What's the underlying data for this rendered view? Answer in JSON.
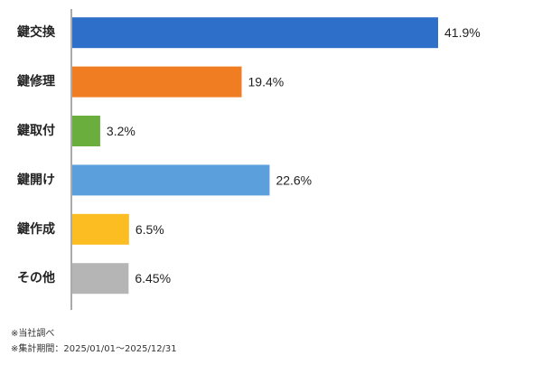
{
  "chart_data": {
    "type": "bar",
    "orientation": "horizontal",
    "categories": [
      "鍵交換",
      "鍵修理",
      "鍵取付",
      "鍵開け",
      "鍵作成",
      "その他"
    ],
    "values": [
      41.9,
      19.4,
      3.2,
      22.6,
      6.5,
      6.45
    ],
    "value_labels": [
      "41.9%",
      "19.4%",
      "3.2%",
      "22.6%",
      "6.5%",
      "6.45%"
    ],
    "colors": [
      "#2e6fc9",
      "#f07d22",
      "#6aaf3d",
      "#5b9fdc",
      "#fbbd21",
      "#b5b5b5"
    ],
    "unit": "%",
    "xlim": [
      0,
      50
    ],
    "grid": false,
    "legend": "none"
  },
  "notes": [
    "※当社調べ",
    "※集計期間：2025/01/01～2025/12/31"
  ]
}
